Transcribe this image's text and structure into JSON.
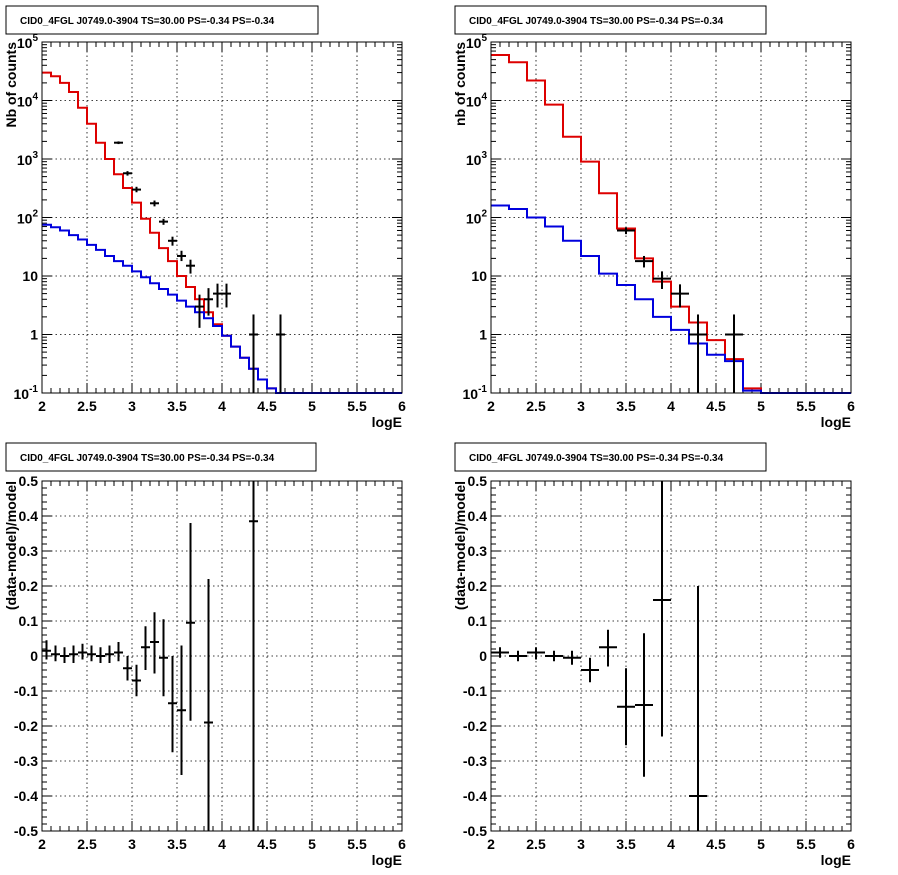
{
  "chart_data": [
    {
      "id": "tl",
      "type": "line",
      "title": "CID0_4FGL J0749.0-3904 TS=30.00 PS=-0.34 PS=-0.34",
      "xlabel": "logE",
      "ylabel": "Nb of counts",
      "xlim": [
        2,
        6
      ],
      "ylim": [
        0.1,
        100000
      ],
      "yscale": "log",
      "grid": true,
      "x_ticks": [
        "2",
        "2.5",
        "3",
        "3.5",
        "4",
        "4.5",
        "5",
        "5.5",
        "6"
      ],
      "y_ticks": [
        {
          "v": 0.1,
          "base": "10",
          "exp": "-1"
        },
        {
          "v": 1,
          "base": "1",
          "exp": ""
        },
        {
          "v": 10,
          "base": "10",
          "exp": ""
        },
        {
          "v": 100,
          "base": "10",
          "exp": "2"
        },
        {
          "v": 1000,
          "base": "10",
          "exp": "3"
        },
        {
          "v": 10000,
          "base": "10",
          "exp": "4"
        },
        {
          "v": 100000,
          "base": "10",
          "exp": "5"
        }
      ],
      "series": [
        {
          "kind": "step",
          "color": "#dd0000",
          "x_start": 2,
          "bin_width": 0.1,
          "values": [
            30000,
            26000,
            20000,
            14000,
            7500,
            4000,
            1900,
            1000,
            550,
            320,
            180,
            95,
            55,
            30,
            18,
            10,
            6.5,
            4,
            2.4,
            1.5,
            0.95,
            0.62,
            0.4,
            0.26,
            0.17,
            0.12,
            0.1,
            0.1,
            0.1,
            0.1,
            0.1,
            0.1,
            0.1,
            0.1,
            0.1,
            0.1,
            0.1,
            0.1,
            0.1,
            0.1
          ]
        },
        {
          "kind": "step",
          "color": "#0000dd",
          "x_start": 2,
          "bin_width": 0.1,
          "values": [
            75,
            68,
            60,
            50,
            42,
            34,
            28,
            22,
            18,
            15,
            12,
            9.5,
            7.5,
            6,
            4.8,
            3.8,
            3.0,
            2.4,
            1.9,
            1.4,
            0.95,
            0.62,
            0.4,
            0.26,
            0.17,
            0.12,
            0.1,
            0.1,
            0.1,
            0.1,
            0.1,
            0.1,
            0.1,
            0.1,
            0.1,
            0.1,
            0.1,
            0.1,
            0.1,
            0.1
          ]
        },
        {
          "kind": "errorbar",
          "color": "#000000",
          "xerr": 0.05,
          "points": [
            {
              "x": 2.85,
              "y": 1900,
              "lo": 1800,
              "hi": 2000
            },
            {
              "x": 2.95,
              "y": 570,
              "lo": 520,
              "hi": 620
            },
            {
              "x": 3.05,
              "y": 300,
              "lo": 270,
              "hi": 335
            },
            {
              "x": 3.25,
              "y": 175,
              "lo": 155,
              "hi": 195
            },
            {
              "x": 3.35,
              "y": 85,
              "lo": 75,
              "hi": 95
            },
            {
              "x": 3.45,
              "y": 40,
              "lo": 33,
              "hi": 47
            },
            {
              "x": 3.55,
              "y": 22,
              "lo": 18,
              "hi": 27
            },
            {
              "x": 3.65,
              "y": 15,
              "lo": 11,
              "hi": 19
            },
            {
              "x": 3.75,
              "y": 3,
              "lo": 1.3,
              "hi": 4.8
            },
            {
              "x": 3.85,
              "y": 4,
              "lo": 2.1,
              "hi": 6.2
            },
            {
              "x": 3.95,
              "y": 5,
              "lo": 2.9,
              "hi": 7.4
            },
            {
              "x": 4.05,
              "y": 5,
              "lo": 2.9,
              "hi": 7.4
            },
            {
              "x": 4.35,
              "y": 1,
              "lo": 0.1,
              "hi": 2.2
            },
            {
              "x": 4.65,
              "y": 1,
              "lo": 0.1,
              "hi": 2.2
            }
          ]
        }
      ]
    },
    {
      "id": "tr",
      "type": "line",
      "title": "CID0_4FGL J0749.0-3904 TS=30.00 PS=-0.34 PS=-0.34",
      "xlabel": "logE",
      "ylabel": "nb of counts",
      "xlim": [
        2,
        6
      ],
      "ylim": [
        0.1,
        100000
      ],
      "yscale": "log",
      "grid": true,
      "x_ticks": [
        "2",
        "2.5",
        "3",
        "3.5",
        "4",
        "4.5",
        "5",
        "5.5",
        "6"
      ],
      "y_ticks": [
        {
          "v": 0.1,
          "base": "10",
          "exp": "-1"
        },
        {
          "v": 1,
          "base": "1",
          "exp": ""
        },
        {
          "v": 10,
          "base": "10",
          "exp": ""
        },
        {
          "v": 100,
          "base": "10",
          "exp": "2"
        },
        {
          "v": 1000,
          "base": "10",
          "exp": "3"
        },
        {
          "v": 10000,
          "base": "10",
          "exp": "4"
        },
        {
          "v": 100000,
          "base": "10",
          "exp": "5"
        }
      ],
      "series": [
        {
          "kind": "step",
          "color": "#dd0000",
          "x_start": 2,
          "bin_width": 0.2,
          "values": [
            60000,
            45000,
            22000,
            8500,
            2400,
            900,
            260,
            65,
            20,
            8,
            3,
            1.6,
            0.8,
            0.38,
            0.12,
            0.1,
            0.1,
            0.1,
            0.1,
            0.1
          ]
        },
        {
          "kind": "step",
          "color": "#0000dd",
          "x_start": 2,
          "bin_width": 0.2,
          "values": [
            160,
            140,
            100,
            70,
            40,
            22,
            11,
            7,
            4,
            2,
            1.2,
            0.7,
            0.45,
            0.35,
            0.11,
            0.1,
            0.1,
            0.1,
            0.1,
            0.1
          ]
        },
        {
          "kind": "errorbar",
          "color": "#000000",
          "xerr": 0.1,
          "points": [
            {
              "x": 3.5,
              "y": 60,
              "lo": 52,
              "hi": 68
            },
            {
              "x": 3.7,
              "y": 18,
              "lo": 14,
              "hi": 22
            },
            {
              "x": 3.9,
              "y": 9,
              "lo": 6,
              "hi": 12
            },
            {
              "x": 4.1,
              "y": 5,
              "lo": 2.9,
              "hi": 7.2
            },
            {
              "x": 4.3,
              "y": 1,
              "lo": 0.1,
              "hi": 2.2
            },
            {
              "x": 4.7,
              "y": 1,
              "lo": 0.1,
              "hi": 2.2
            }
          ]
        }
      ]
    },
    {
      "id": "bl",
      "type": "scatter",
      "title": "CID0_4FGL J0749.0-3904 TS=30.00 PS=-0.34 PS=-0.34",
      "xlabel": "logE",
      "ylabel": "(data-model)/model",
      "xlim": [
        2,
        6
      ],
      "ylim": [
        -0.5,
        0.5
      ],
      "yscale": "linear",
      "grid": true,
      "x_ticks": [
        "2",
        "2.5",
        "3",
        "3.5",
        "4",
        "4.5",
        "5",
        "5.5",
        "6"
      ],
      "y_ticks": [
        {
          "v": -0.5,
          "base": "-0.5",
          "exp": ""
        },
        {
          "v": -0.4,
          "base": "-0.4",
          "exp": ""
        },
        {
          "v": -0.3,
          "base": "-0.3",
          "exp": ""
        },
        {
          "v": -0.2,
          "base": "-0.2",
          "exp": ""
        },
        {
          "v": -0.1,
          "base": "-0.1",
          "exp": ""
        },
        {
          "v": 0,
          "base": "0",
          "exp": ""
        },
        {
          "v": 0.1,
          "base": "0.1",
          "exp": ""
        },
        {
          "v": 0.2,
          "base": "0.2",
          "exp": ""
        },
        {
          "v": 0.3,
          "base": "0.3",
          "exp": ""
        },
        {
          "v": 0.4,
          "base": "0.4",
          "exp": ""
        },
        {
          "v": 0.5,
          "base": "0.5",
          "exp": ""
        }
      ],
      "series": [
        {
          "kind": "errorbar",
          "color": "#000000",
          "xerr": 0.05,
          "points": [
            {
              "x": 2.05,
              "y": 0.015,
              "lo": -0.01,
              "hi": 0.045
            },
            {
              "x": 2.15,
              "y": 0.005,
              "lo": -0.015,
              "hi": 0.03
            },
            {
              "x": 2.25,
              "y": 0.0,
              "lo": -0.02,
              "hi": 0.025
            },
            {
              "x": 2.35,
              "y": 0.005,
              "lo": -0.02,
              "hi": 0.03
            },
            {
              "x": 2.45,
              "y": 0.01,
              "lo": -0.01,
              "hi": 0.035
            },
            {
              "x": 2.55,
              "y": 0.005,
              "lo": -0.015,
              "hi": 0.03
            },
            {
              "x": 2.65,
              "y": 0.0,
              "lo": -0.02,
              "hi": 0.025
            },
            {
              "x": 2.75,
              "y": 0.005,
              "lo": -0.02,
              "hi": 0.03
            },
            {
              "x": 2.85,
              "y": 0.01,
              "lo": -0.015,
              "hi": 0.04
            },
            {
              "x": 2.95,
              "y": -0.035,
              "lo": -0.07,
              "hi": 0.0
            },
            {
              "x": 3.05,
              "y": -0.07,
              "lo": -0.115,
              "hi": -0.025
            },
            {
              "x": 3.15,
              "y": 0.025,
              "lo": -0.04,
              "hi": 0.085
            },
            {
              "x": 3.25,
              "y": 0.04,
              "lo": -0.05,
              "hi": 0.125
            },
            {
              "x": 3.35,
              "y": -0.005,
              "lo": -0.115,
              "hi": 0.105
            },
            {
              "x": 3.45,
              "y": -0.135,
              "lo": -0.275,
              "hi": 0.0
            },
            {
              "x": 3.55,
              "y": -0.155,
              "lo": -0.34,
              "hi": 0.03
            },
            {
              "x": 3.65,
              "y": 0.095,
              "lo": -0.185,
              "hi": 0.38
            },
            {
              "x": 3.85,
              "y": -0.19,
              "lo": -0.5,
              "hi": 0.22
            },
            {
              "x": 4.35,
              "y": 0.385,
              "lo": -0.5,
              "hi": 0.5
            }
          ]
        }
      ]
    },
    {
      "id": "br",
      "type": "scatter",
      "title": "CID0_4FGL J0749.0-3904 TS=30.00 PS=-0.34 PS=-0.34",
      "xlabel": "logE",
      "ylabel": "(data-model)/model",
      "xlim": [
        2,
        6
      ],
      "ylim": [
        -0.5,
        0.5
      ],
      "yscale": "linear",
      "grid": true,
      "x_ticks": [
        "2",
        "2.5",
        "3",
        "3.5",
        "4",
        "4.5",
        "5",
        "5.5",
        "6"
      ],
      "y_ticks": [
        {
          "v": -0.5,
          "base": "-0.5",
          "exp": ""
        },
        {
          "v": -0.4,
          "base": "-0.4",
          "exp": ""
        },
        {
          "v": -0.3,
          "base": "-0.3",
          "exp": ""
        },
        {
          "v": -0.2,
          "base": "-0.2",
          "exp": ""
        },
        {
          "v": -0.1,
          "base": "-0.1",
          "exp": ""
        },
        {
          "v": 0,
          "base": "0",
          "exp": ""
        },
        {
          "v": 0.1,
          "base": "0.1",
          "exp": ""
        },
        {
          "v": 0.2,
          "base": "0.2",
          "exp": ""
        },
        {
          "v": 0.3,
          "base": "0.3",
          "exp": ""
        },
        {
          "v": 0.4,
          "base": "0.4",
          "exp": ""
        },
        {
          "v": 0.5,
          "base": "0.5",
          "exp": ""
        }
      ],
      "series": [
        {
          "kind": "errorbar",
          "color": "#000000",
          "xerr": 0.1,
          "points": [
            {
              "x": 2.1,
              "y": 0.01,
              "lo": -0.005,
              "hi": 0.025
            },
            {
              "x": 2.3,
              "y": 0.0,
              "lo": -0.015,
              "hi": 0.015
            },
            {
              "x": 2.5,
              "y": 0.01,
              "lo": -0.01,
              "hi": 0.025
            },
            {
              "x": 2.7,
              "y": 0.0,
              "lo": -0.015,
              "hi": 0.015
            },
            {
              "x": 2.9,
              "y": -0.005,
              "lo": -0.025,
              "hi": 0.015
            },
            {
              "x": 3.1,
              "y": -0.04,
              "lo": -0.075,
              "hi": -0.005
            },
            {
              "x": 3.3,
              "y": 0.025,
              "lo": -0.03,
              "hi": 0.075
            },
            {
              "x": 3.5,
              "y": -0.145,
              "lo": -0.255,
              "hi": -0.035
            },
            {
              "x": 3.7,
              "y": -0.14,
              "lo": -0.345,
              "hi": 0.065
            },
            {
              "x": 3.9,
              "y": 0.16,
              "lo": -0.23,
              "hi": 0.5
            },
            {
              "x": 4.3,
              "y": -0.4,
              "lo": -0.5,
              "hi": 0.2
            }
          ]
        }
      ]
    }
  ]
}
